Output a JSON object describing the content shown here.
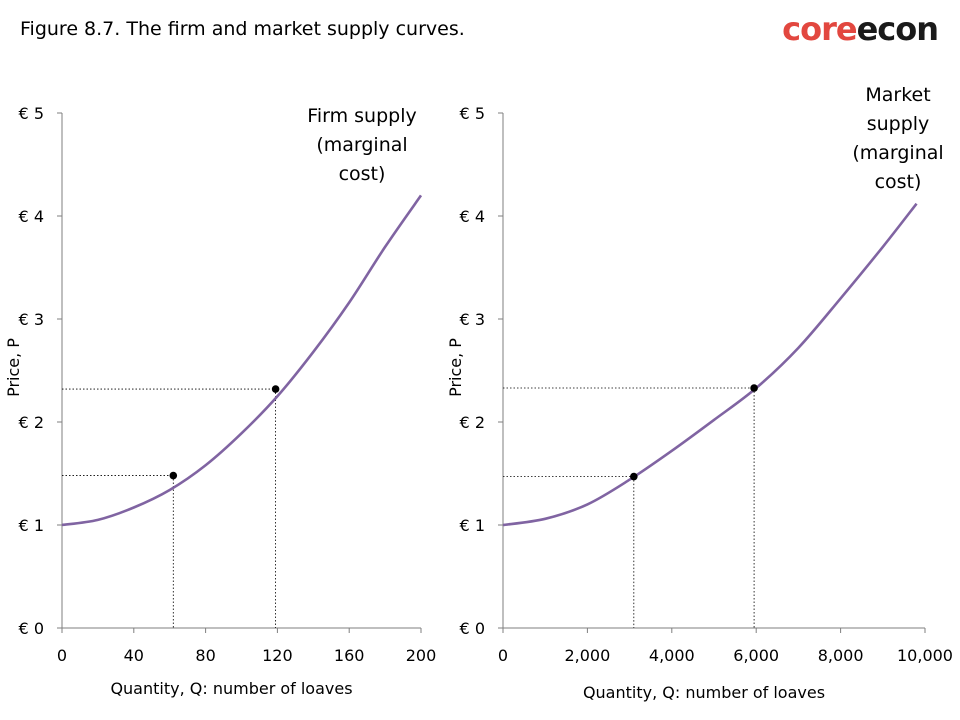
{
  "title": "Figure 8.7. The firm and market supply curves.",
  "logo": {
    "part1": "core",
    "part2": "econ",
    "color1": "#e2473f",
    "color2": "#1a1a1a"
  },
  "colors": {
    "curve": "#8064a2",
    "axis": "#7f7f7f",
    "guide": "#000000"
  },
  "chart_data": [
    {
      "type": "line",
      "xlabel": "Quantity, Q: number of loaves",
      "ylabel": "Price, P",
      "xlim": [
        0,
        200
      ],
      "ylim": [
        0,
        5
      ],
      "xticks": [
        0,
        40,
        80,
        120,
        160,
        200
      ],
      "xtick_labels": [
        "0",
        "40",
        "80",
        "120",
        "160",
        "200"
      ],
      "yticks": [
        0,
        1,
        2,
        3,
        4,
        5
      ],
      "ytick_labels": [
        "€ 0",
        "€ 1",
        "€ 2",
        "€ 3",
        "€ 4",
        "€ 5"
      ],
      "series": [
        {
          "name": "Firm supply (marginal cost)",
          "x": [
            0,
            20,
            40,
            60,
            80,
            100,
            120,
            140,
            160,
            180,
            200
          ],
          "y": [
            1.0,
            1.05,
            1.17,
            1.34,
            1.58,
            1.89,
            2.25,
            2.68,
            3.16,
            3.7,
            4.2
          ]
        }
      ],
      "curve_label": [
        "Firm supply",
        "(marginal",
        "cost)"
      ],
      "points": [
        {
          "x": 62,
          "y": 1.48
        },
        {
          "x": 119,
          "y": 2.32
        }
      ]
    },
    {
      "type": "line",
      "xlabel": "Quantity, Q: number of loaves",
      "ylabel": "Price, P",
      "xlim": [
        0,
        10000
      ],
      "ylim": [
        0,
        5
      ],
      "xticks": [
        0,
        2000,
        4000,
        6000,
        8000,
        10000
      ],
      "xtick_labels": [
        "0",
        "2,000",
        "4,000",
        "6,000",
        "8,000",
        "10,000"
      ],
      "yticks": [
        0,
        1,
        2,
        3,
        4,
        5
      ],
      "ytick_labels": [
        "€ 0",
        "€ 1",
        "€ 2",
        "€ 3",
        "€ 4",
        "€ 5"
      ],
      "series": [
        {
          "name": "Market supply (marginal cost)",
          "x": [
            0,
            1000,
            2000,
            3000,
            4000,
            5000,
            6000,
            7000,
            8000,
            9000,
            9800
          ],
          "y": [
            1.0,
            1.06,
            1.2,
            1.44,
            1.72,
            2.02,
            2.33,
            2.72,
            3.2,
            3.7,
            4.12
          ]
        }
      ],
      "curve_label": [
        "Market",
        "supply",
        "(marginal",
        "cost)"
      ],
      "points": [
        {
          "x": 3100,
          "y": 1.47
        },
        {
          "x": 5950,
          "y": 2.33
        }
      ]
    }
  ]
}
